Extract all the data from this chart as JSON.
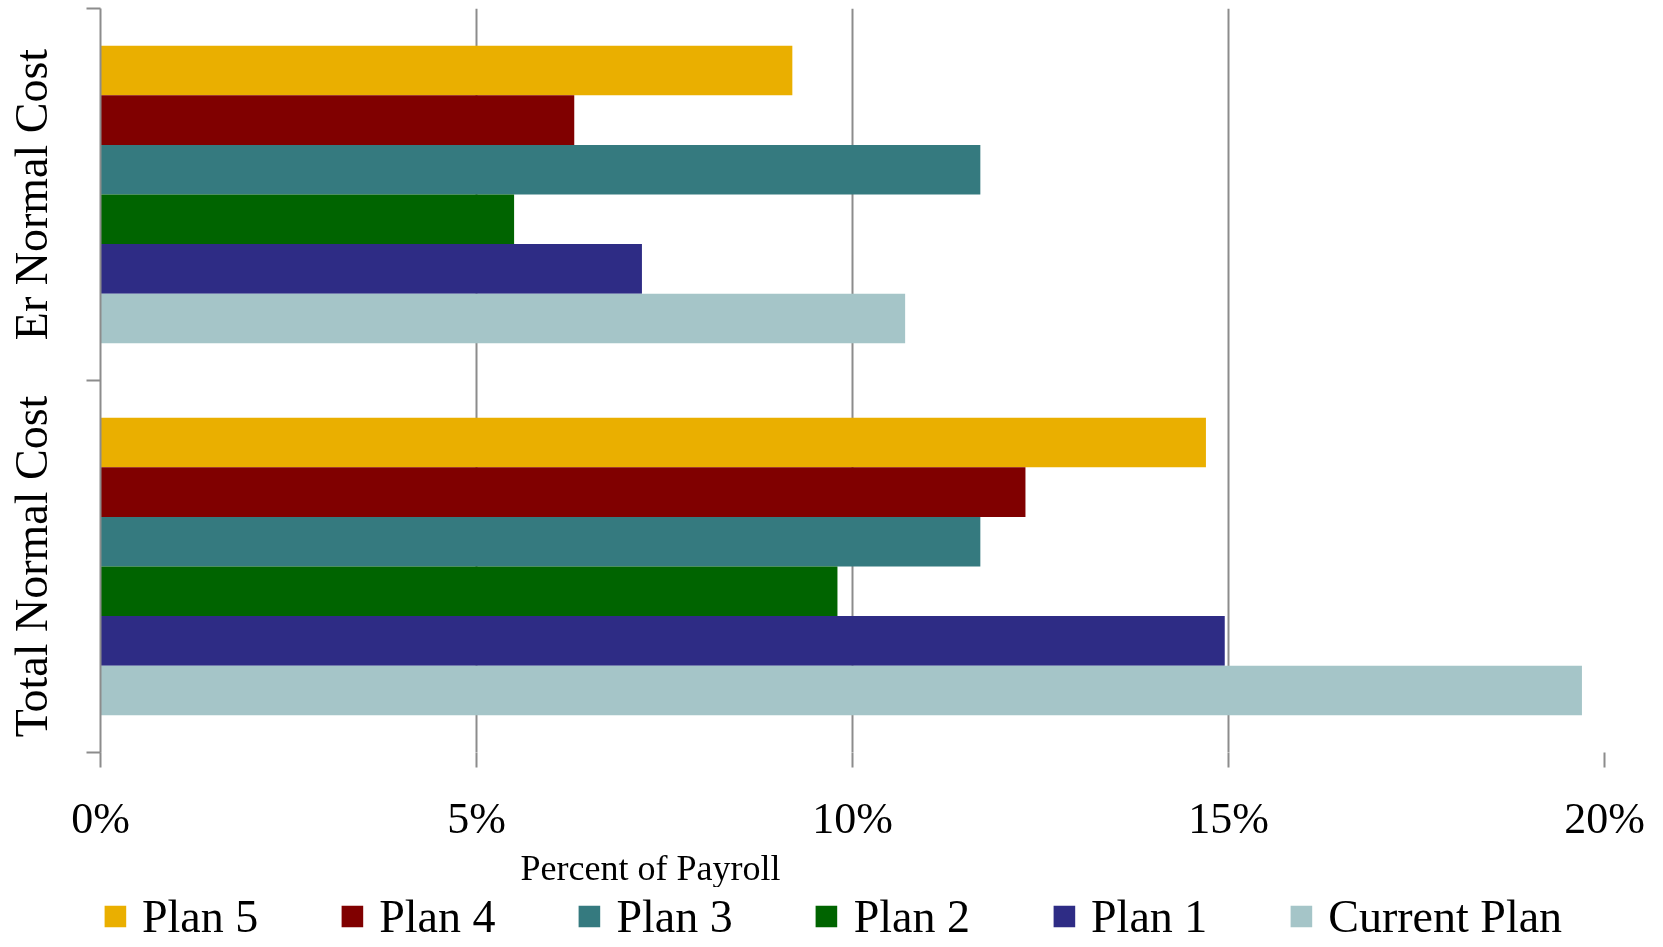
{
  "chart_data": {
    "type": "bar",
    "orientation": "horizontal",
    "xlabel": "Percent of Payroll",
    "categories": [
      "Er Normal Cost",
      "Total Normal Cost"
    ],
    "series": [
      {
        "name": "Plan 5",
        "color": "#eaaf00",
        "values": [
          9.2,
          14.7
        ]
      },
      {
        "name": "Plan 4",
        "color": "#800000",
        "values": [
          6.3,
          12.3
        ]
      },
      {
        "name": "Plan 3",
        "color": "#357a7f",
        "values": [
          11.7,
          11.7
        ]
      },
      {
        "name": "Plan 2",
        "color": "#006400",
        "values": [
          5.5,
          9.8
        ]
      },
      {
        "name": "Plan 1",
        "color": "#2e2c85",
        "values": [
          7.2,
          14.95
        ]
      },
      {
        "name": "Current Plan",
        "color": "#a5c5c8",
        "values": [
          10.7,
          19.7
        ]
      }
    ],
    "xlim": [
      0,
      20
    ],
    "xticks": [
      {
        "value": 0,
        "label": "0%"
      },
      {
        "value": 5,
        "label": "5%"
      },
      {
        "value": 10,
        "label": "10%"
      },
      {
        "value": 15,
        "label": "15%"
      },
      {
        "value": 20,
        "label": "20%"
      }
    ],
    "grid": "x",
    "legend": "bottom"
  }
}
